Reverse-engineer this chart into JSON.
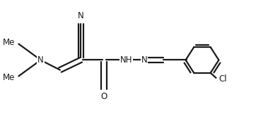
{
  "background_color": "#ffffff",
  "line_color": "#1a1a1a",
  "line_width": 1.6,
  "font_size": 8.5,
  "figsize": [
    3.96,
    1.78
  ],
  "dpi": 100,
  "xlim": [
    0,
    10
  ],
  "ylim": [
    0,
    5
  ]
}
